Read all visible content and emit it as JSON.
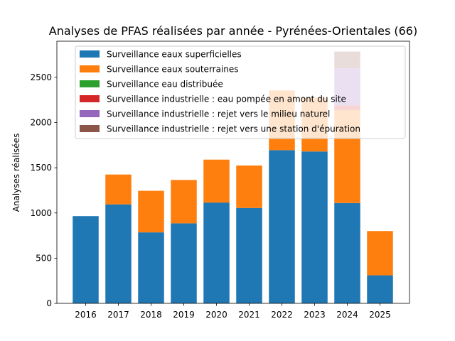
{
  "chart_data": {
    "type": "bar",
    "stacked": true,
    "title": "Analyses de PFAS réalisées par année - Pyrénées-Orientales (66)",
    "xlabel": "",
    "ylabel": "Analyses réalisées",
    "ylim": [
      0,
      2900
    ],
    "yticks": [
      0,
      500,
      1000,
      1500,
      2000,
      2500
    ],
    "categories": [
      "2016",
      "2017",
      "2018",
      "2019",
      "2020",
      "2021",
      "2022",
      "2023",
      "2024",
      "2025"
    ],
    "grid": false,
    "legend_position": "top",
    "series": [
      {
        "name": "Surveillance eaux superficielles",
        "color": "#1f77b4",
        "values": [
          965,
          1095,
          785,
          885,
          1115,
          1055,
          1695,
          1680,
          1110,
          310
        ]
      },
      {
        "name": "Surveillance eaux souterraines",
        "color": "#ff7f0e",
        "values": [
          0,
          330,
          460,
          480,
          475,
          470,
          660,
          595,
          1030,
          490
        ]
      },
      {
        "name": "Surveillance eau distribuée",
        "color": "#2ca02c",
        "values": [
          0,
          0,
          0,
          0,
          0,
          0,
          0,
          0,
          0,
          0
        ]
      },
      {
        "name": "Surveillance industrielle : eau pompée en amont du site",
        "color": "#d62728",
        "values": [
          0,
          0,
          0,
          0,
          0,
          0,
          0,
          0,
          50,
          0
        ]
      },
      {
        "name": "Surveillance industrielle : rejet vers le milieu naturel",
        "color": "#9467bd",
        "values": [
          0,
          0,
          0,
          0,
          0,
          0,
          0,
          0,
          410,
          0
        ]
      },
      {
        "name": "Surveillance industrielle : rejet vers une station d'épuration",
        "color": "#8c564b",
        "values": [
          0,
          0,
          0,
          0,
          0,
          0,
          0,
          0,
          185,
          0
        ]
      }
    ]
  }
}
